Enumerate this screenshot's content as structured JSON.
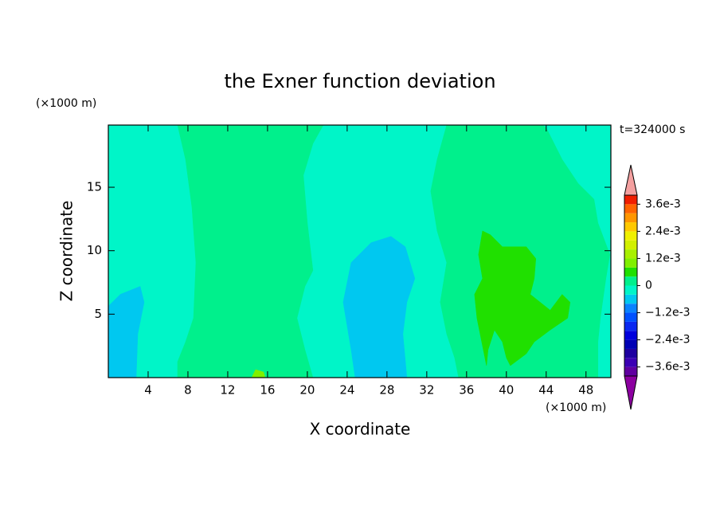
{
  "chart_data": {
    "type": "contour",
    "title": "the Exner function deviation",
    "xlabel": "X coordinate",
    "ylabel": "Z coordinate",
    "x_unit": "(×1000 m)",
    "y_unit": "(×1000 m)",
    "annotation": "t=324000 s",
    "xlim": [
      0,
      50.5
    ],
    "ylim": [
      0,
      19.9
    ],
    "xticks": [
      4,
      8,
      12,
      16,
      20,
      24,
      28,
      32,
      36,
      40,
      44,
      48
    ],
    "yticks": [
      5,
      10,
      15
    ],
    "colorbar": {
      "levels": [
        -0.004,
        -0.0036,
        -0.0032,
        -0.0028,
        -0.0024,
        -0.002,
        -0.0016,
        -0.0012,
        -0.0008,
        -0.0004,
        0,
        0.0004,
        0.0008,
        0.0012,
        0.0016,
        0.002,
        0.0024,
        0.0028,
        0.0032,
        0.0036,
        0.004
      ],
      "colors": [
        "#6000a0",
        "#3c00b4",
        "#1e00a0",
        "#0000b4",
        "#0000dc",
        "#0a28f0",
        "#0050ff",
        "#0a82ff",
        "#00c8f0",
        "#00f5c8",
        "#00f08c",
        "#20e000",
        "#80f000",
        "#a8f000",
        "#d2f000",
        "#f0f000",
        "#ffc800",
        "#ff9600",
        "#ff6400",
        "#f01e00"
      ],
      "over_color": "#f4a0a0",
      "under_color": "#8c00a0",
      "ticks": [
        {
          "value": 0.0036,
          "label": "3.6e-3"
        },
        {
          "value": 0.0024,
          "label": "2.4e-3"
        },
        {
          "value": 0.0012,
          "label": "1.2e-3"
        },
        0,
        {
          "value": -0.0012,
          "label": "−1.2e-3"
        },
        {
          "value": -0.0024,
          "label": "−2.4e-3"
        },
        {
          "value": -0.0036,
          "label": "−3.6e-3"
        }
      ]
    },
    "regions": [
      {
        "value": -0.0002,
        "x": [
          0,
          50.5,
          50.5,
          0
        ],
        "y": [
          0,
          0,
          19.9,
          19.9
        ]
      },
      {
        "value": 0.0002,
        "x": [
          6.96,
          7.76,
          8.4,
          8.8,
          8.56,
          7.76,
          6.96,
          6.96,
          20.56,
          19.76,
          18.96,
          19.76,
          20.56,
          20,
          19.6,
          20.56,
          21.6
        ],
        "y": [
          19.9,
          17.19,
          13.44,
          9.06,
          4.69,
          2.81,
          1.25,
          0,
          0,
          2.19,
          4.69,
          7.19,
          8.44,
          12.19,
          15.94,
          18.44,
          19.9
        ]
      },
      {
        "value": 0.0002,
        "x": [
          34,
          33.04,
          32.4,
          33.04,
          34,
          33.36,
          34,
          34.8,
          35.2,
          49.2,
          49.2,
          49.44,
          50,
          50.4,
          49.2,
          48.8,
          47.2,
          45.6,
          44,
          43.6
        ],
        "y": [
          19.9,
          17.19,
          14.69,
          11.56,
          9.06,
          5.94,
          3.44,
          1.56,
          0,
          0,
          2.81,
          4.69,
          7.81,
          9.69,
          12.19,
          14.06,
          15.31,
          17.19,
          19.69,
          19.9
        ]
      },
      {
        "value": -0.0006,
        "x": [
          0,
          0,
          1.2,
          3.2,
          3.6,
          2.96,
          2.8
        ],
        "y": [
          0,
          5.63,
          6.56,
          7.19,
          5.94,
          3.44,
          0
        ]
      },
      {
        "value": -0.0006,
        "x": [
          24.8,
          24.4,
          23.6,
          24.4,
          26.4,
          28.4,
          29.84,
          30.8,
          30,
          29.6,
          30
        ],
        "y": [
          0,
          2.19,
          5.94,
          9.06,
          10.63,
          11.13,
          10.31,
          7.81,
          5.94,
          3.44,
          0
        ]
      },
      {
        "value": 0.0006,
        "x": [
          37.6,
          38.4,
          39.6,
          42,
          42.96,
          42.8,
          42.4,
          44.4,
          45.6,
          46.4,
          46.16,
          44.4,
          42.8,
          42,
          40.4,
          40,
          39.6,
          38.8,
          38.16,
          38,
          37.04,
          36.8,
          37.6,
          37.2
        ],
        "y": [
          11.56,
          11.25,
          10.31,
          10.31,
          9.38,
          7.81,
          6.56,
          5.31,
          6.56,
          5.94,
          4.69,
          3.75,
          2.81,
          1.88,
          0.94,
          1.56,
          2.81,
          3.75,
          2.19,
          0.94,
          4.69,
          6.56,
          7.81,
          9.69
        ]
      },
      {
        "value": 0.001,
        "x": [
          14.4,
          14.8,
          15.6,
          15.76
        ],
        "y": [
          0,
          0.63,
          0.44,
          0
        ]
      }
    ]
  }
}
